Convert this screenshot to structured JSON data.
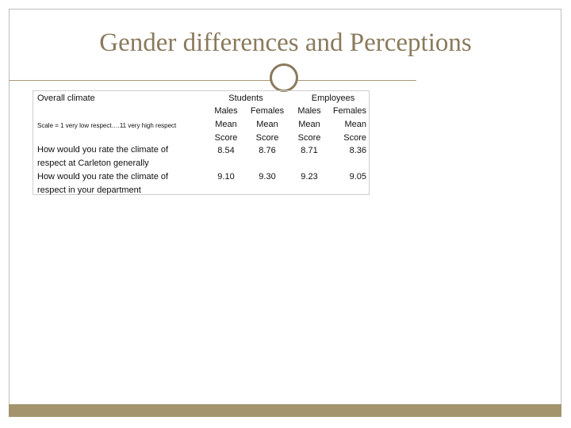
{
  "title": "Gender differences and Perceptions",
  "table": {
    "heading": "Overall climate",
    "scale_note": "Scale = 1 very low respect….11 very high respect",
    "groups": [
      "Students",
      "Employees"
    ],
    "subgroups": [
      "Males",
      "Females",
      "Males",
      "Females"
    ],
    "metric_line1": "Mean",
    "metric_line2": "Score",
    "rows": [
      {
        "question_line1": "How would you rate the climate of",
        "question_line2": "respect at Carleton generally",
        "values": [
          "8.54",
          "8.76",
          "8.71",
          "8.36"
        ]
      },
      {
        "question_line1": "How would you rate the climate of",
        "question_line2": "respect in your department",
        "values": [
          "9.10",
          "9.30",
          "9.23",
          "9.05"
        ]
      }
    ]
  },
  "colors": {
    "title": "#8a7a5c",
    "accent": "#a3946e",
    "border": "#bdbdbd"
  }
}
